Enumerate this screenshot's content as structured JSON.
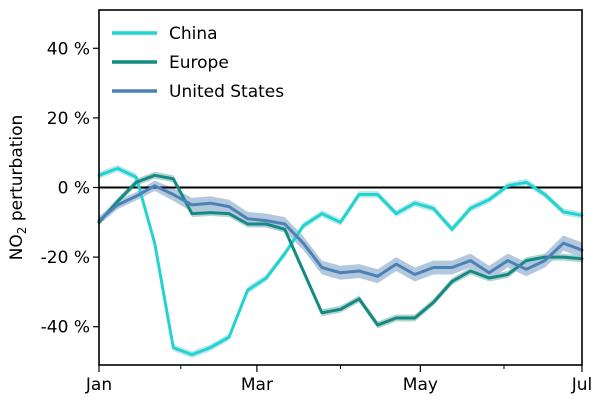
{
  "chart_data": {
    "type": "line",
    "title": "",
    "xlabel": "",
    "ylabel": "NO₂ perturbation",
    "ylabel_parts": {
      "main": "NO",
      "sub": "2",
      "rest": " perturbation"
    },
    "xlim": [
      0,
      26
    ],
    "ylim": [
      -51,
      51
    ],
    "x_ticks": [
      {
        "value": 0,
        "label": "Jan"
      },
      {
        "value": 8.5,
        "label": "Mar"
      },
      {
        "value": 17.3,
        "label": "May"
      },
      {
        "value": 26,
        "label": "Jul"
      }
    ],
    "x_minor_ticks": [
      4.4,
      13,
      21.8
    ],
    "y_ticks": [
      {
        "value": 40,
        "label": "40 %"
      },
      {
        "value": 20,
        "label": "20 %"
      },
      {
        "value": 0,
        "label": "0 %"
      },
      {
        "value": -20,
        "label": "-20 %"
      },
      {
        "value": -40,
        "label": "-40 %"
      }
    ],
    "zero_line": true,
    "grid": false,
    "legend_position": "top-left",
    "x": [
      0,
      1,
      2,
      3,
      4,
      5,
      6,
      7,
      8,
      9,
      10,
      11,
      12,
      13,
      14,
      15,
      16,
      17,
      18,
      19,
      20,
      21,
      22,
      23,
      24,
      25,
      26
    ],
    "series": [
      {
        "name": "China",
        "color": "#22d3d3",
        "band_color": "#bfe9ea",
        "values": [
          3.5,
          5.5,
          3,
          -16,
          -46,
          -48,
          -46,
          -43,
          -29.5,
          -26,
          -19,
          -11,
          -7.5,
          -10,
          -2,
          -2,
          -7.5,
          -4.5,
          -6,
          -12,
          -6,
          -3.5,
          0.5,
          1.5,
          -2,
          -7,
          -8
        ],
        "band": [
          1,
          1,
          1,
          1,
          1,
          1,
          1,
          1,
          1,
          1,
          1,
          1,
          1,
          1,
          1,
          1,
          1,
          1,
          1,
          1,
          1,
          1,
          1,
          1,
          1,
          1,
          1
        ]
      },
      {
        "name": "Europe",
        "color": "#158a82",
        "band_color": "#b3d4d1",
        "values": [
          -10,
          -4,
          1.5,
          3.5,
          2.5,
          -7.5,
          -7.2,
          -7.5,
          -10.5,
          -10.5,
          -12,
          -24,
          -36,
          -35,
          -32,
          -39.5,
          -37.5,
          -37.5,
          -33,
          -27,
          -24,
          -26,
          -25,
          -21,
          -20,
          -20,
          -20.5
        ],
        "band": [
          1,
          1,
          1,
          1,
          1,
          1,
          1,
          1,
          1,
          1,
          1,
          1,
          1,
          1,
          1,
          1,
          1,
          1,
          1,
          1,
          1,
          1,
          1,
          1,
          1,
          1,
          1
        ]
      },
      {
        "name": "United States",
        "color": "#4b82b6",
        "band_color": "#b4c8dd",
        "values": [
          -9.5,
          -5,
          -2.5,
          0.5,
          -2,
          -5,
          -4.5,
          -5.5,
          -9,
          -9.5,
          -10.5,
          -16,
          -23,
          -24.5,
          -24,
          -25.5,
          -22,
          -25,
          -23,
          -23,
          -21,
          -24.5,
          -21,
          -23.5,
          -21,
          -16,
          -18
        ],
        "band": [
          1.2,
          1.2,
          1.2,
          1.5,
          1.8,
          2,
          2,
          2,
          2,
          2,
          2,
          2,
          2,
          2,
          2,
          2,
          2,
          2,
          2,
          2,
          2,
          2,
          2,
          2,
          2,
          2.2,
          2.2
        ]
      }
    ]
  }
}
